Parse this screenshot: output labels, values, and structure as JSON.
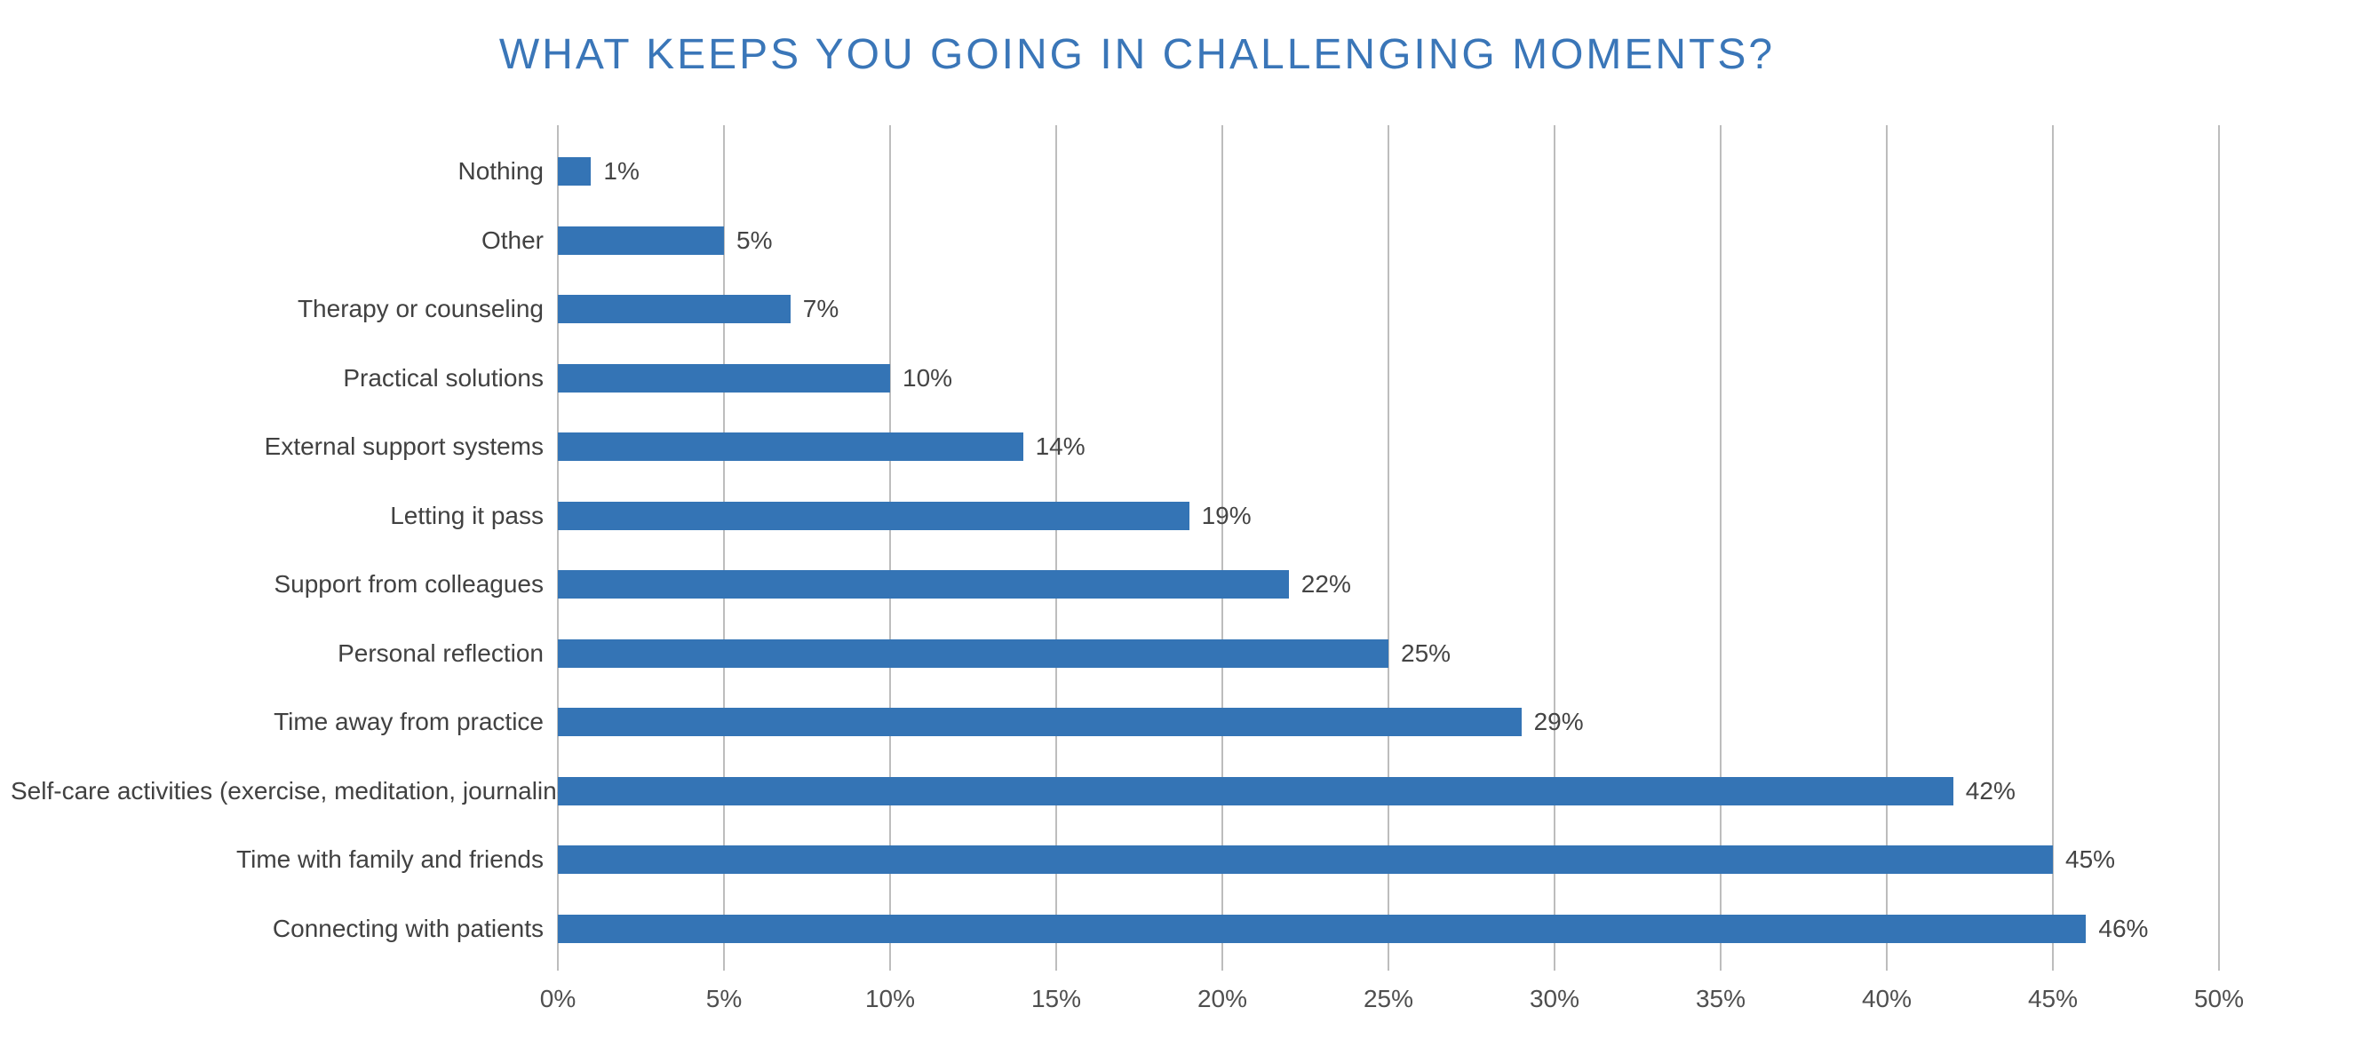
{
  "title": "WHAT KEEPS YOU GOING IN CHALLENGING MOMENTS?",
  "chart_data": {
    "type": "bar",
    "orientation": "horizontal",
    "title": "WHAT KEEPS YOU GOING IN CHALLENGING MOMENTS?",
    "categories": [
      "Nothing",
      "Other",
      "Therapy or counseling",
      "Practical solutions",
      "External support systems",
      "Letting it pass",
      "Support from colleagues",
      "Personal reflection",
      "Time away from practice",
      "Self-care activities (exercise, meditation, journaling, etc.)",
      "Time with family and friends",
      "Connecting with patients"
    ],
    "values": [
      1,
      5,
      7,
      10,
      14,
      19,
      22,
      25,
      29,
      42,
      45,
      46
    ],
    "value_labels": [
      "1%",
      "5%",
      "7%",
      "10%",
      "14%",
      "19%",
      "22%",
      "25%",
      "29%",
      "42%",
      "45%",
      "46%"
    ],
    "xlabel": "",
    "ylabel": "",
    "xlim": [
      0,
      50
    ],
    "x_tick_values": [
      0,
      5,
      10,
      15,
      20,
      25,
      30,
      35,
      40,
      45,
      50
    ],
    "x_tick_labels": [
      "0%",
      "5%",
      "10%",
      "15%",
      "20%",
      "25%",
      "30%",
      "35%",
      "40%",
      "45%",
      "50%"
    ],
    "grid": "vertical-only",
    "legend": "none",
    "colors": {
      "bar": "#3474B5",
      "title": "#3A76B8",
      "category_text": "#414141",
      "value_text": "#444444",
      "tick_text": "#4F4F4F",
      "gridline": "#BDBDBD",
      "background": "#FFFFFF"
    }
  }
}
